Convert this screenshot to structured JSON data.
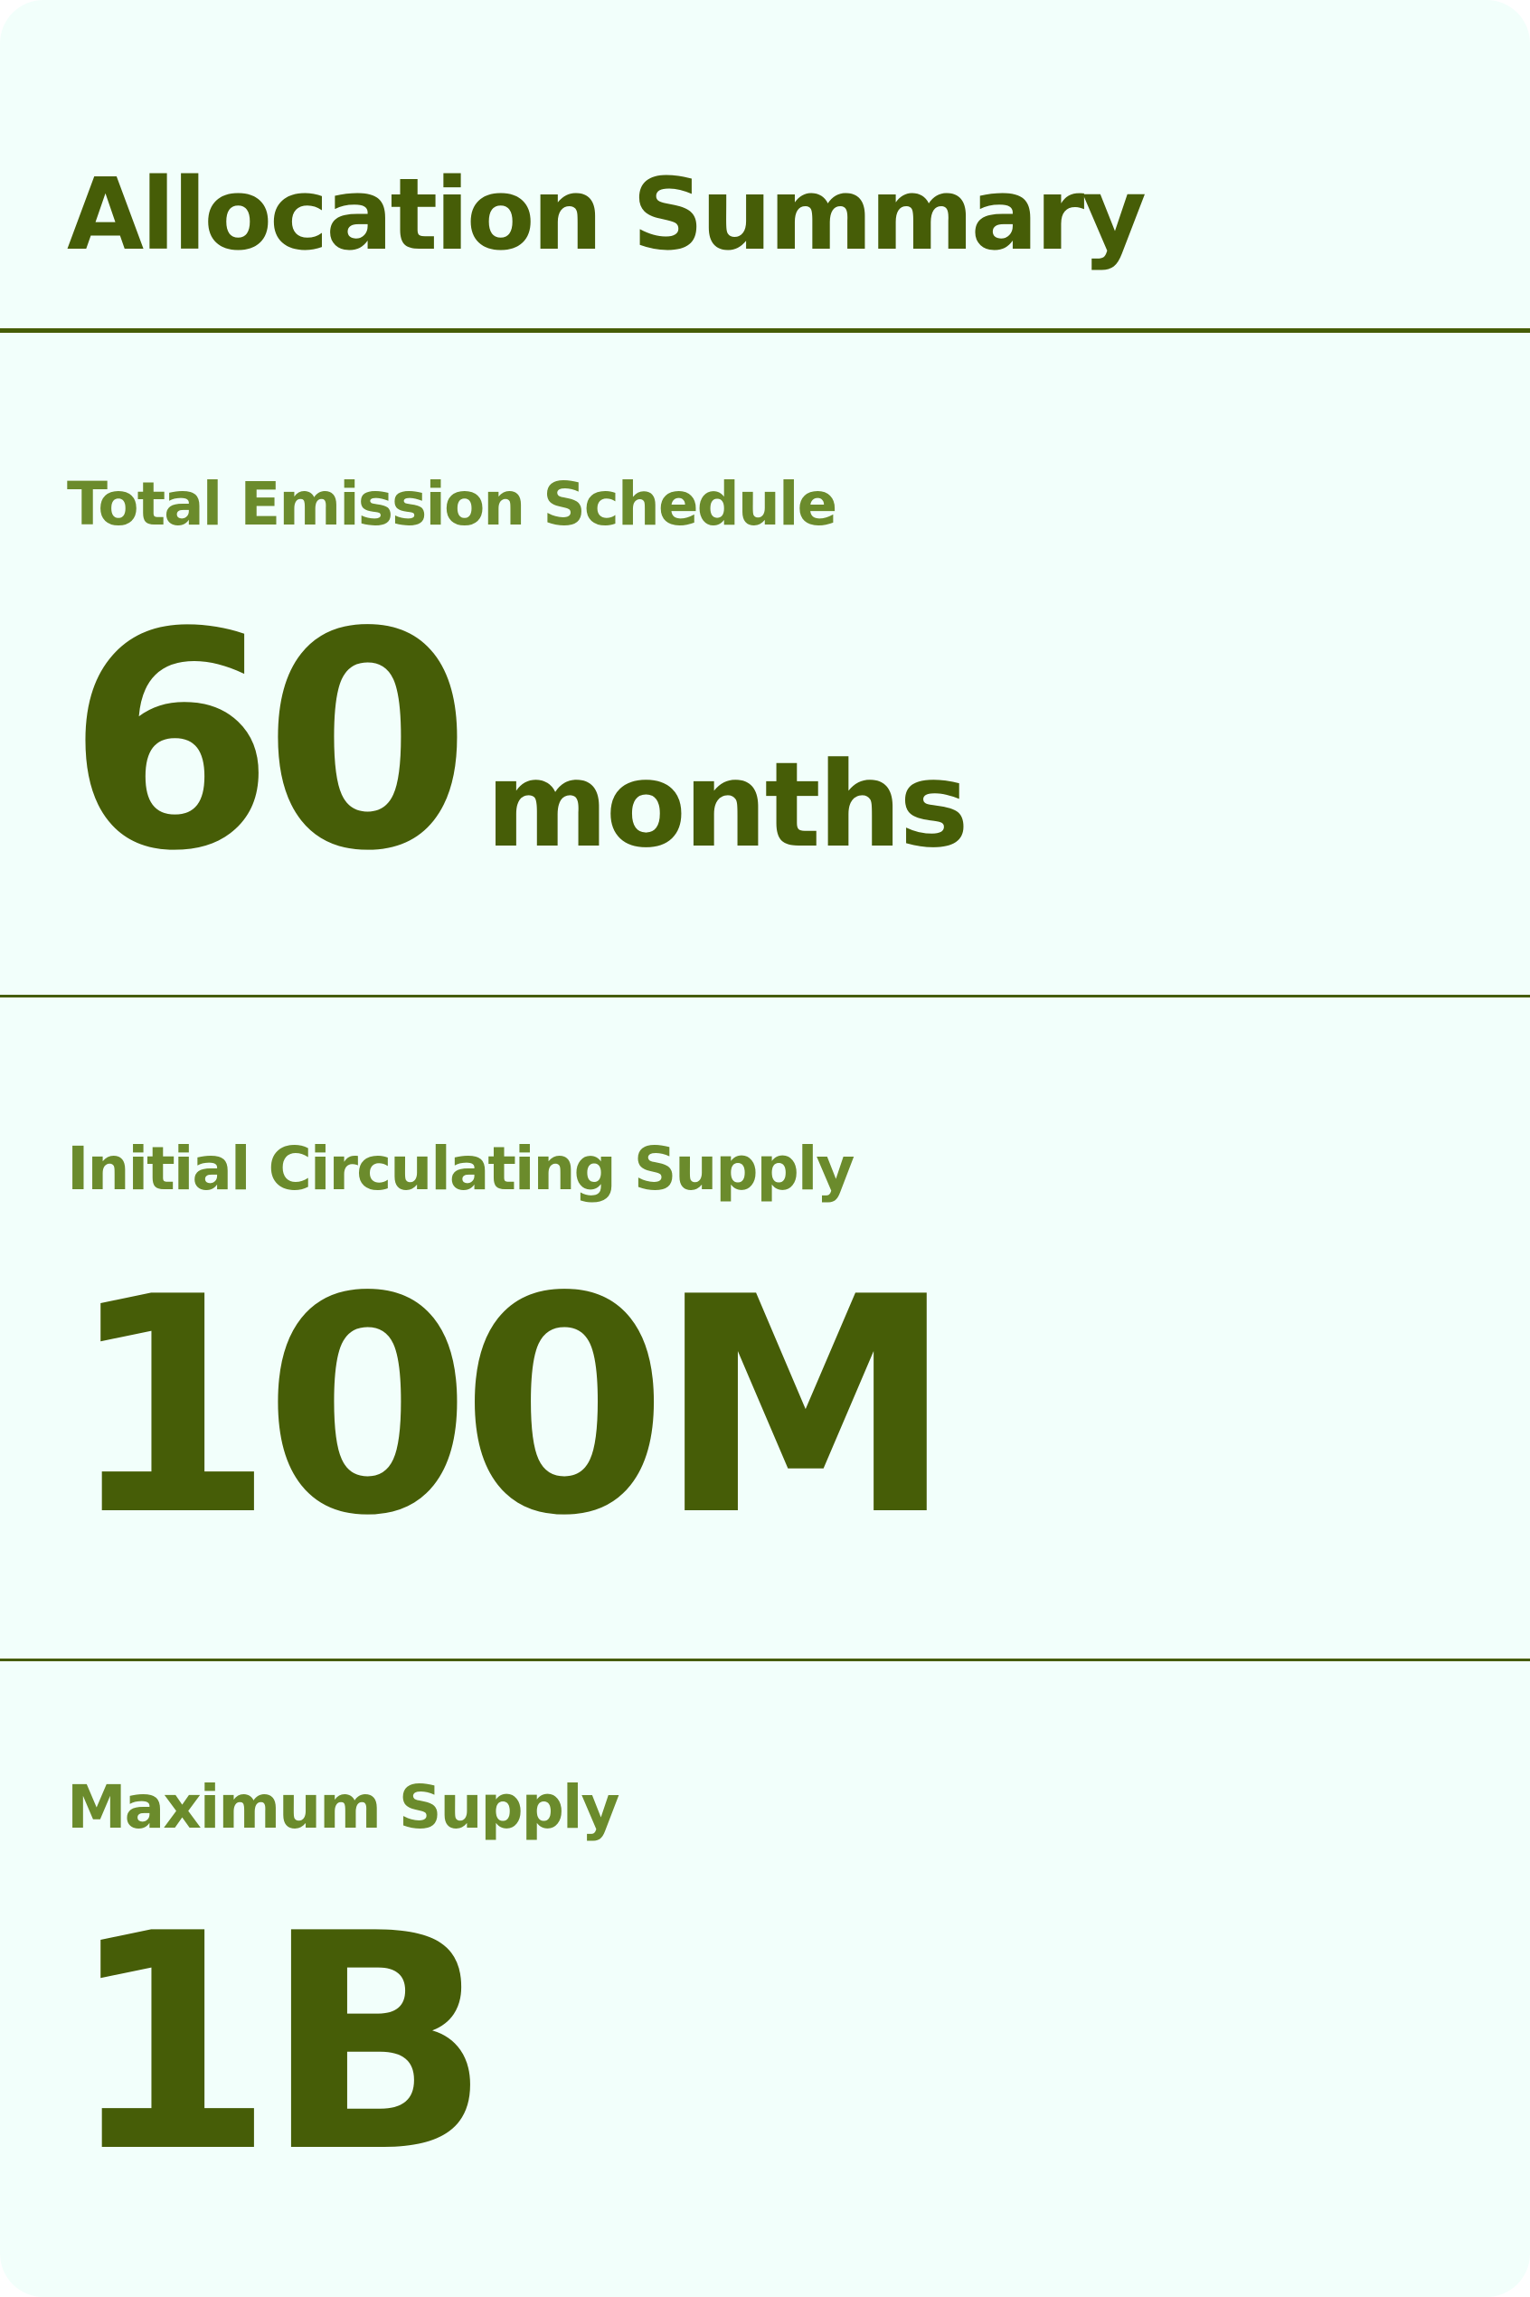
{
  "card": {
    "title": "Allocation Summary"
  },
  "stats": [
    {
      "label": "Total Emission Schedule",
      "value": "60",
      "unit": "months"
    },
    {
      "label": "Initial Circulating Supply",
      "value": "100M",
      "unit": ""
    },
    {
      "label": "Maximum Supply",
      "value": "1B",
      "unit": ""
    }
  ],
  "colors": {
    "background": "#f2fffb",
    "primary_text": "#465d07",
    "label_text": "#6b8b2c",
    "divider": "#465d07"
  }
}
